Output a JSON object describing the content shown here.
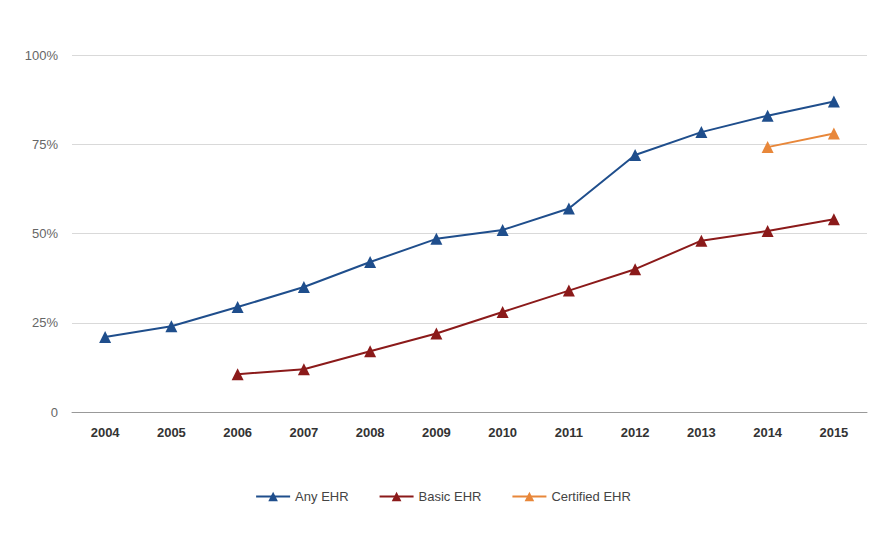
{
  "chart_data": {
    "type": "line",
    "categories": [
      "2004",
      "2005",
      "2006",
      "2007",
      "2008",
      "2009",
      "2010",
      "2011",
      "2012",
      "2013",
      "2014",
      "2015"
    ],
    "series": [
      {
        "name": "Any EHR",
        "color": "#1f4e8c",
        "marker": "triangle",
        "line_style": "solid",
        "values": [
          21,
          24,
          29.4,
          35,
          42,
          48.5,
          51,
          57,
          72,
          78.4,
          83,
          87
        ]
      },
      {
        "name": "Basic EHR",
        "color": "#8b1a1a",
        "marker": "triangle",
        "line_style": "solid",
        "values": [
          null,
          null,
          10.6,
          12,
          17,
          22,
          28,
          34,
          40,
          48,
          50.7,
          54
        ]
      },
      {
        "name": "Certified EHR",
        "color": "#e8873a",
        "marker": "triangle",
        "line_style": "solid",
        "values": [
          null,
          null,
          null,
          null,
          null,
          null,
          null,
          null,
          null,
          null,
          74.2,
          78
        ]
      }
    ],
    "ylim": [
      0,
      100
    ],
    "yticks": [
      0,
      {
        "value": 25,
        "label": "25%"
      },
      {
        "value": 50,
        "label": "50%"
      },
      {
        "value": 75,
        "label": "75%"
      },
      {
        "value": 100,
        "label": "100%"
      }
    ],
    "grid": true,
    "legend": "bottom"
  }
}
